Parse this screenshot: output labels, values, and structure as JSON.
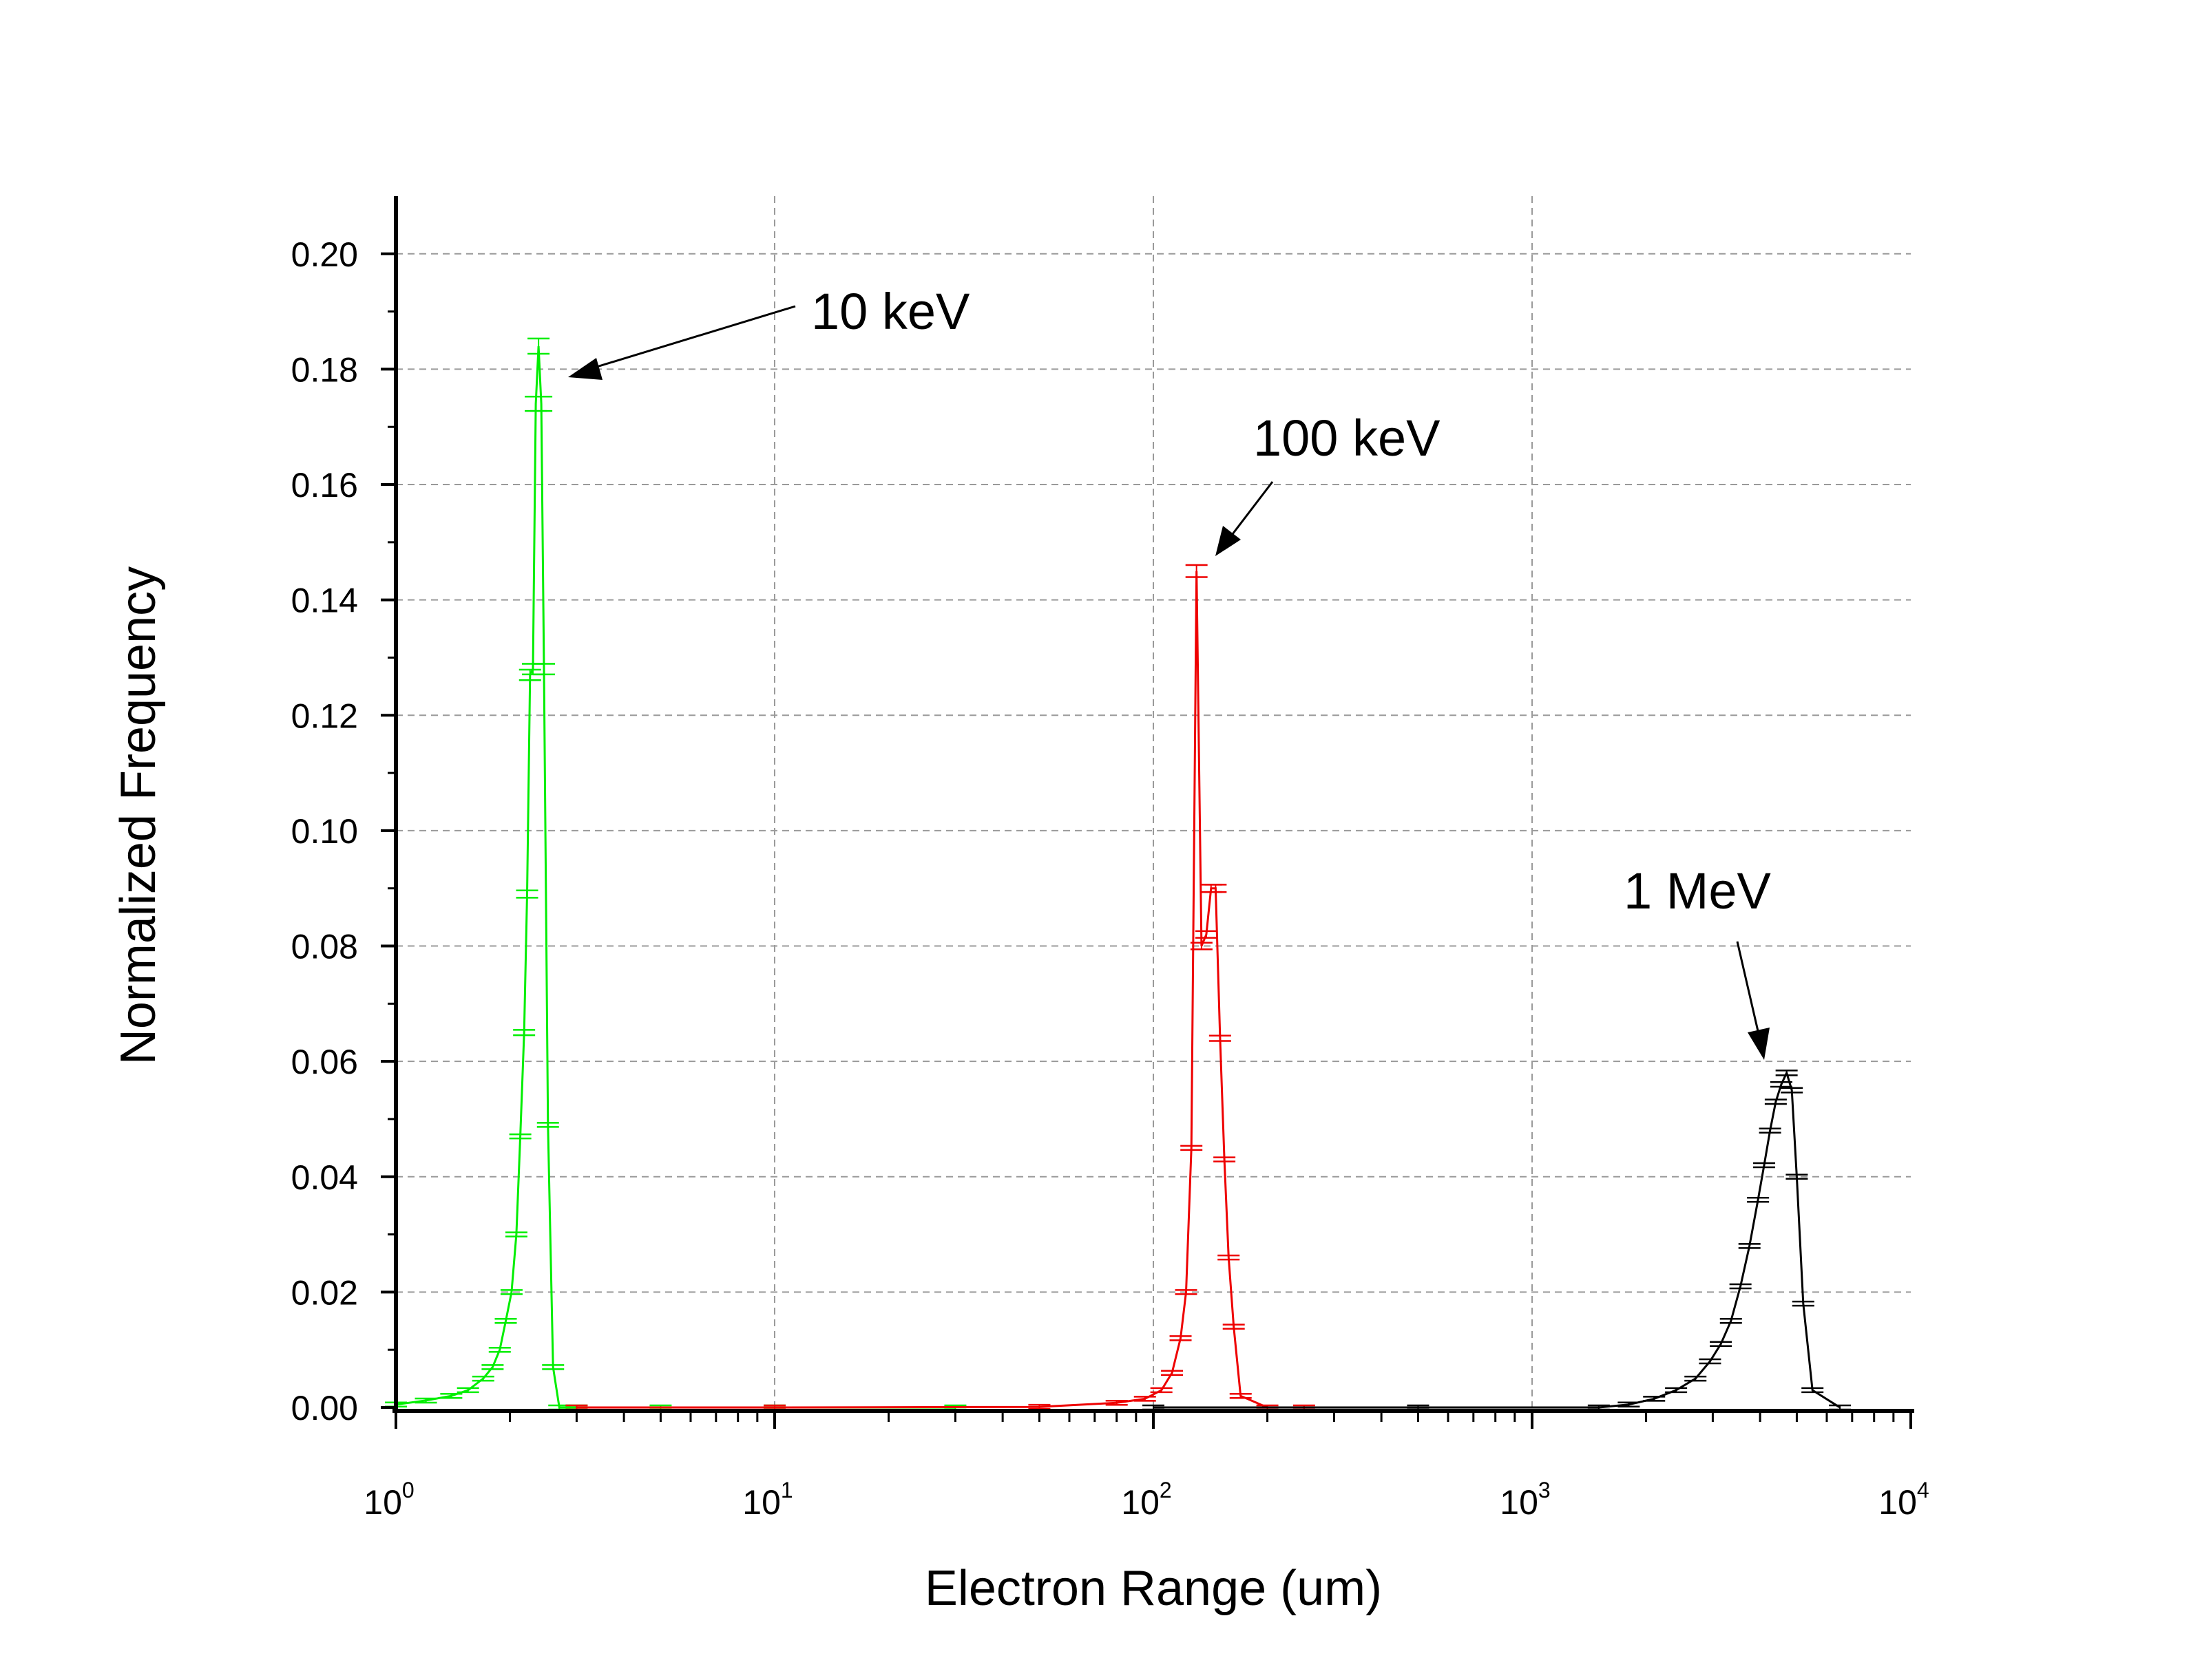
{
  "chart_data": {
    "type": "line",
    "xlabel": "Electron Range (um)",
    "ylabel": "Normalized Frequency",
    "xscale": "log",
    "xlim": [
      1,
      10000
    ],
    "ylim": [
      0,
      0.21
    ],
    "grid": true,
    "x_ticks": [
      {
        "base": "10",
        "exp": "0",
        "value": 1
      },
      {
        "base": "10",
        "exp": "1",
        "value": 10
      },
      {
        "base": "10",
        "exp": "2",
        "value": 100
      },
      {
        "base": "10",
        "exp": "3",
        "value": 1000
      },
      {
        "base": "10",
        "exp": "4",
        "value": 10000
      }
    ],
    "y_ticks": [
      "0.00",
      "0.02",
      "0.04",
      "0.06",
      "0.08",
      "0.10",
      "0.12",
      "0.14",
      "0.16",
      "0.18",
      "0.20"
    ],
    "series": [
      {
        "color": "#00ee00",
        "x": [
          1.0,
          1.2,
          1.4,
          1.55,
          1.7,
          1.8,
          1.88,
          1.95,
          2.02,
          2.08,
          2.13,
          2.18,
          2.22,
          2.26,
          2.3,
          2.34,
          2.38,
          2.42,
          2.46,
          2.52,
          2.6,
          2.7,
          3.0,
          5.0,
          10.0,
          30.0
        ],
        "y": [
          0.0005,
          0.0012,
          0.002,
          0.003,
          0.005,
          0.007,
          0.01,
          0.015,
          0.02,
          0.03,
          0.047,
          0.065,
          0.089,
          0.127,
          0.128,
          0.174,
          0.184,
          0.174,
          0.128,
          0.049,
          0.007,
          0.0,
          0.0,
          0.0,
          0.0,
          0.0
        ],
        "errors": true
      },
      {
        "color": "#ee0000",
        "x": [
          3.0,
          10.0,
          50.0,
          80.0,
          95.0,
          105.0,
          112.0,
          118.0,
          122.0,
          126.0,
          130.0,
          134.0,
          138.0,
          142.0,
          146.0,
          150.0,
          154.0,
          158.0,
          163.0,
          170.0,
          200.0,
          250.0
        ],
        "y": [
          0.0,
          0.0,
          0.0001,
          0.0008,
          0.0015,
          0.003,
          0.006,
          0.012,
          0.02,
          0.045,
          0.145,
          0.08,
          0.082,
          0.09,
          0.09,
          0.064,
          0.043,
          0.026,
          0.014,
          0.002,
          0.0,
          0.0
        ],
        "errors": true
      },
      {
        "color": "#000000",
        "x": [
          100.0,
          500.0,
          1500.0,
          1800.0,
          2100.0,
          2400.0,
          2700.0,
          2950.0,
          3150.0,
          3350.0,
          3550.0,
          3750.0,
          3950.0,
          4100.0,
          4250.0,
          4400.0,
          4550.0,
          4700.0,
          4850.0,
          5000.0,
          5200.0,
          5500.0,
          6500.0
        ],
        "y": [
          0.0,
          0.0,
          0.0,
          0.0005,
          0.0015,
          0.003,
          0.005,
          0.008,
          0.011,
          0.015,
          0.021,
          0.028,
          0.036,
          0.042,
          0.048,
          0.053,
          0.056,
          0.058,
          0.055,
          0.04,
          0.018,
          0.003,
          0.0
        ],
        "errors": true
      }
    ],
    "annotations": [
      {
        "text": "10 keV",
        "x": 2.45,
        "y": 0.1785
      },
      {
        "text": "100 keV",
        "x": 140.0,
        "y": 0.1485
      },
      {
        "text": "1 MeV",
        "x": 4700.0,
        "y": 0.0615
      }
    ]
  }
}
